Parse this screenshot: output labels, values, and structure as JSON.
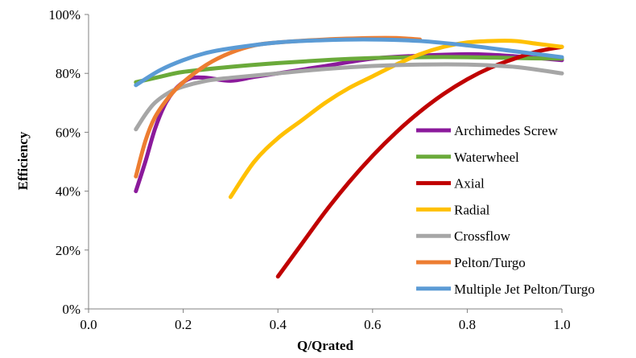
{
  "chart_data": {
    "type": "line",
    "title": "",
    "xlabel": "Q/Qrated",
    "ylabel": "Efficiency",
    "xlim": [
      0,
      1
    ],
    "ylim": [
      0,
      100
    ],
    "x_ticks": [
      "0.0",
      "0.2",
      "0.4",
      "0.6",
      "0.8",
      "1.0"
    ],
    "y_ticks": [
      "0%",
      "20%",
      "40%",
      "60%",
      "80%",
      "100%"
    ],
    "grid": false,
    "legend_position": "right",
    "series": [
      {
        "name": "Archimedes Screw",
        "color": "#8B1A9B",
        "points": [
          [
            0.1,
            40
          ],
          [
            0.12,
            50
          ],
          [
            0.14,
            61
          ],
          [
            0.16,
            69
          ],
          [
            0.18,
            74
          ],
          [
            0.2,
            77
          ],
          [
            0.22,
            78.5
          ],
          [
            0.25,
            78.5
          ],
          [
            0.3,
            77.5
          ],
          [
            0.35,
            78.8
          ],
          [
            0.4,
            80
          ],
          [
            0.5,
            82.5
          ],
          [
            0.6,
            85
          ],
          [
            0.7,
            86
          ],
          [
            0.8,
            86.5
          ],
          [
            0.85,
            86.3
          ],
          [
            0.9,
            85.8
          ],
          [
            0.95,
            85.2
          ],
          [
            1.0,
            84.5
          ]
        ]
      },
      {
        "name": "Waterwheel",
        "color": "#6AAA3A",
        "points": [
          [
            0.1,
            77
          ],
          [
            0.15,
            78.8
          ],
          [
            0.2,
            80.5
          ],
          [
            0.3,
            82.2
          ],
          [
            0.4,
            83.5
          ],
          [
            0.5,
            84.5
          ],
          [
            0.6,
            85.2
          ],
          [
            0.7,
            85.5
          ],
          [
            0.8,
            85.5
          ],
          [
            0.9,
            85.2
          ],
          [
            1.0,
            85
          ]
        ]
      },
      {
        "name": "Axial",
        "color": "#C00000",
        "points": [
          [
            0.4,
            11
          ],
          [
            0.45,
            22
          ],
          [
            0.5,
            33
          ],
          [
            0.55,
            43
          ],
          [
            0.6,
            52
          ],
          [
            0.65,
            60
          ],
          [
            0.7,
            67
          ],
          [
            0.75,
            73
          ],
          [
            0.8,
            78
          ],
          [
            0.85,
            82
          ],
          [
            0.9,
            85
          ],
          [
            0.95,
            87.5
          ],
          [
            1.0,
            89
          ]
        ]
      },
      {
        "name": "Radial",
        "color": "#FFC000",
        "points": [
          [
            0.3,
            38
          ],
          [
            0.35,
            50
          ],
          [
            0.4,
            58
          ],
          [
            0.45,
            64
          ],
          [
            0.5,
            70
          ],
          [
            0.55,
            75
          ],
          [
            0.6,
            79
          ],
          [
            0.65,
            83
          ],
          [
            0.7,
            86.5
          ],
          [
            0.75,
            89
          ],
          [
            0.8,
            90.5
          ],
          [
            0.85,
            91
          ],
          [
            0.9,
            91
          ],
          [
            0.95,
            90
          ],
          [
            1.0,
            89
          ]
        ]
      },
      {
        "name": "Crossflow",
        "color": "#A6A6A6",
        "points": [
          [
            0.1,
            61
          ],
          [
            0.12,
            66
          ],
          [
            0.14,
            70
          ],
          [
            0.17,
            73.5
          ],
          [
            0.2,
            75.5
          ],
          [
            0.25,
            77.5
          ],
          [
            0.3,
            78.5
          ],
          [
            0.4,
            80
          ],
          [
            0.5,
            81.5
          ],
          [
            0.6,
            82.5
          ],
          [
            0.7,
            83
          ],
          [
            0.8,
            83
          ],
          [
            0.9,
            82.2
          ],
          [
            1.0,
            80
          ]
        ]
      },
      {
        "name": "Pelton/Turgo",
        "color": "#ED7D31",
        "points": [
          [
            0.1,
            45
          ],
          [
            0.12,
            57
          ],
          [
            0.14,
            65
          ],
          [
            0.17,
            72
          ],
          [
            0.2,
            77
          ],
          [
            0.25,
            83
          ],
          [
            0.3,
            87
          ],
          [
            0.35,
            89.5
          ],
          [
            0.4,
            90.5
          ],
          [
            0.5,
            91.5
          ],
          [
            0.6,
            92
          ],
          [
            0.65,
            92
          ],
          [
            0.7,
            91.5
          ]
        ]
      },
      {
        "name": "Multiple Jet Pelton/Turgo",
        "color": "#5B9BD5",
        "points": [
          [
            0.1,
            76
          ],
          [
            0.15,
            81
          ],
          [
            0.2,
            84.5
          ],
          [
            0.25,
            87
          ],
          [
            0.3,
            88.5
          ],
          [
            0.4,
            90.5
          ],
          [
            0.5,
            91.3
          ],
          [
            0.6,
            91.5
          ],
          [
            0.7,
            91
          ],
          [
            0.8,
            89.5
          ],
          [
            0.9,
            87.5
          ],
          [
            1.0,
            85.5
          ]
        ]
      }
    ]
  }
}
